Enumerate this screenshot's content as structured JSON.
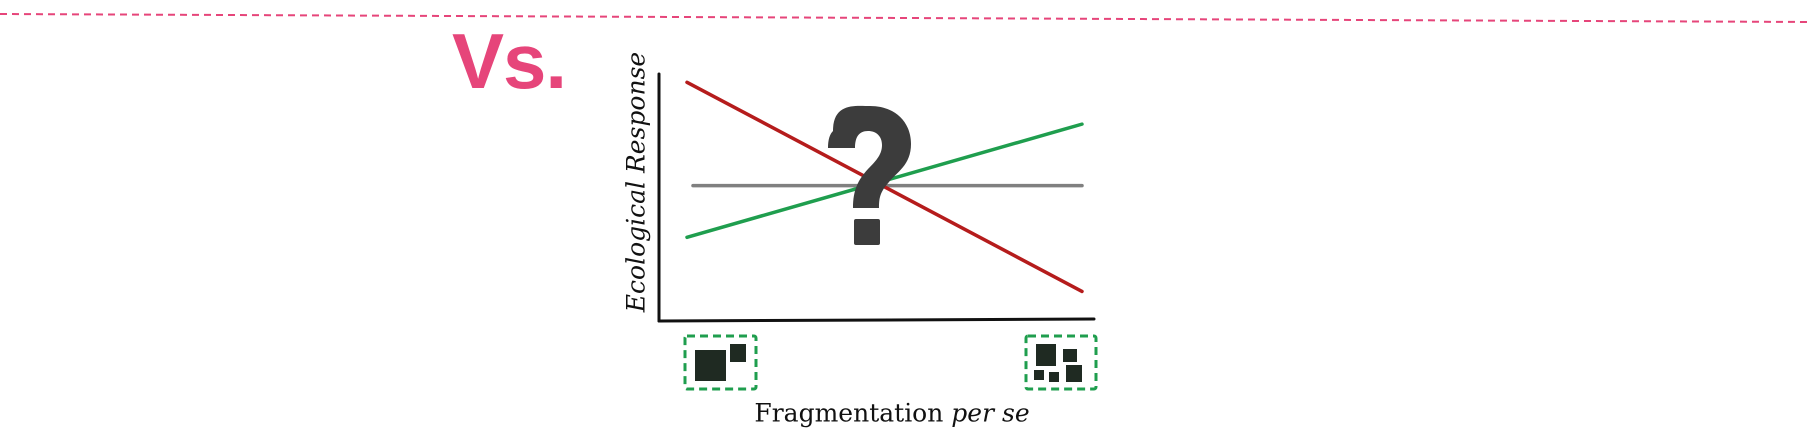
{
  "vs_label": "Vs.",
  "axes": {
    "ylabel": "Ecological Response",
    "xlabel_main": "Fragmentation ",
    "xlabel_emph": "per se"
  },
  "colors": {
    "accent_pink": "#e6457a",
    "negative_line": "#b51c1c",
    "positive_line": "#1f9e4e",
    "neutral_line": "#808080",
    "axis": "#111111",
    "patch_border": "#1f9e4e",
    "patch_fill": "#1f2a22",
    "question_mark": "#3c3c3c"
  },
  "icons": {
    "uncertainty": "question-mark-icon",
    "low_fragmentation": "few-large-patches-icon",
    "high_fragmentation": "many-small-patches-icon"
  },
  "chart_data": {
    "type": "line",
    "x": [
      0,
      1
    ],
    "series": [
      {
        "values": [
          0.95,
          0.1
        ]
      },
      {
        "values": [
          0.32,
          0.78
        ]
      },
      {
        "values": [
          0.53,
          0.53
        ]
      }
    ]
  }
}
